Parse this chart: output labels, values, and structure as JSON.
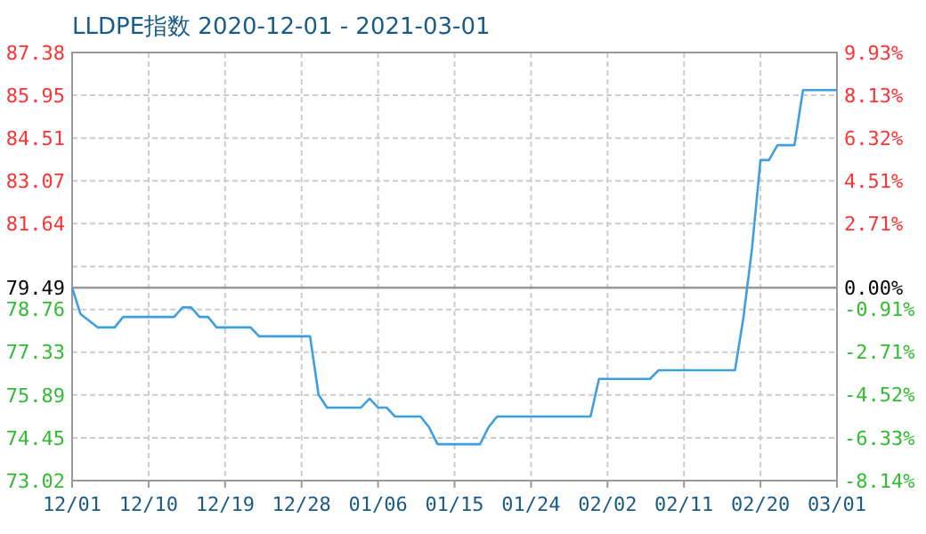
{
  "chart_data": {
    "type": "line",
    "title": "LLDPE指数 2020-12-01 - 2021-03-01",
    "x": [
      "2020-12-01",
      "2020-12-02",
      "2020-12-04",
      "2020-12-06",
      "2020-12-07",
      "2020-12-13",
      "2020-12-14",
      "2020-12-15",
      "2020-12-16",
      "2020-12-17",
      "2020-12-18",
      "2020-12-22",
      "2020-12-23",
      "2020-12-29",
      "2020-12-30",
      "2020-12-31",
      "2021-01-04",
      "2021-01-05",
      "2021-01-06",
      "2021-01-07",
      "2021-01-08",
      "2021-01-11",
      "2021-01-12",
      "2021-01-13",
      "2021-01-18",
      "2021-01-19",
      "2021-01-20",
      "2021-01-31",
      "2021-02-01",
      "2021-02-07",
      "2021-02-08",
      "2021-02-17",
      "2021-02-18",
      "2021-02-19",
      "2021-02-20",
      "2021-02-21",
      "2021-02-22",
      "2021-02-24",
      "2021-02-25",
      "2021-03-01"
    ],
    "series": [
      {
        "color": "#3d9ee0",
        "values": [
          79.49,
          78.6,
          78.16,
          78.16,
          78.51,
          78.51,
          78.83,
          78.83,
          78.51,
          78.51,
          78.16,
          78.16,
          77.86,
          77.86,
          75.9,
          75.47,
          75.47,
          75.77,
          75.47,
          75.47,
          75.17,
          75.17,
          74.81,
          74.24,
          74.24,
          74.81,
          75.17,
          75.17,
          76.43,
          76.43,
          76.72,
          76.72,
          78.5,
          80.8,
          83.77,
          83.77,
          84.27,
          84.27,
          86.12,
          86.12
        ]
      }
    ],
    "xlim": [
      "2020-12-01",
      "2021-03-01"
    ],
    "xticks": [
      {
        "value": "2020-12-01",
        "label": "12/01"
      },
      {
        "value": "2020-12-10",
        "label": "12/10"
      },
      {
        "value": "2020-12-19",
        "label": "12/19"
      },
      {
        "value": "2020-12-28",
        "label": "12/28"
      },
      {
        "value": "2021-01-06",
        "label": "01/06"
      },
      {
        "value": "2021-01-15",
        "label": "01/15"
      },
      {
        "value": "2021-01-24",
        "label": "01/24"
      },
      {
        "value": "2021-02-02",
        "label": "02/02"
      },
      {
        "value": "2021-02-11",
        "label": "02/11"
      },
      {
        "value": "2021-02-20",
        "label": "02/20"
      },
      {
        "value": "2021-03-01",
        "label": "03/01"
      }
    ],
    "ylim": [
      73.02,
      87.38
    ],
    "yticks": [
      73.02,
      74.45,
      75.89,
      77.33,
      78.76,
      {
        "value": 80.2,
        "label": null
      },
      81.64,
      83.07,
      84.51,
      85.95,
      87.38
    ],
    "y2lim": [
      -8.14,
      9.93
    ],
    "y2ticks": [
      {
        "value": -8.14,
        "label": "-8.14%"
      },
      {
        "value": -6.33,
        "label": "-6.33%"
      },
      {
        "value": -4.52,
        "label": "-4.52%"
      },
      {
        "value": -2.71,
        "label": "-2.71%"
      },
      {
        "value": -0.91,
        "label": "-0.91%"
      },
      {
        "value": 0,
        "label": "0.00%"
      },
      {
        "value": 2.71,
        "label": "2.71%"
      },
      {
        "value": 4.51,
        "label": "4.51%"
      },
      {
        "value": 6.32,
        "label": "6.32%"
      },
      {
        "value": 8.13,
        "label": "8.13%"
      },
      {
        "value": 9.93,
        "label": "9.93%"
      }
    ],
    "ref_lines": [
      {
        "axis": "y",
        "value": 79.49,
        "label": "79.49",
        "color": "#999999"
      }
    ],
    "grid": true,
    "marker": "none",
    "line_style": "solid"
  }
}
